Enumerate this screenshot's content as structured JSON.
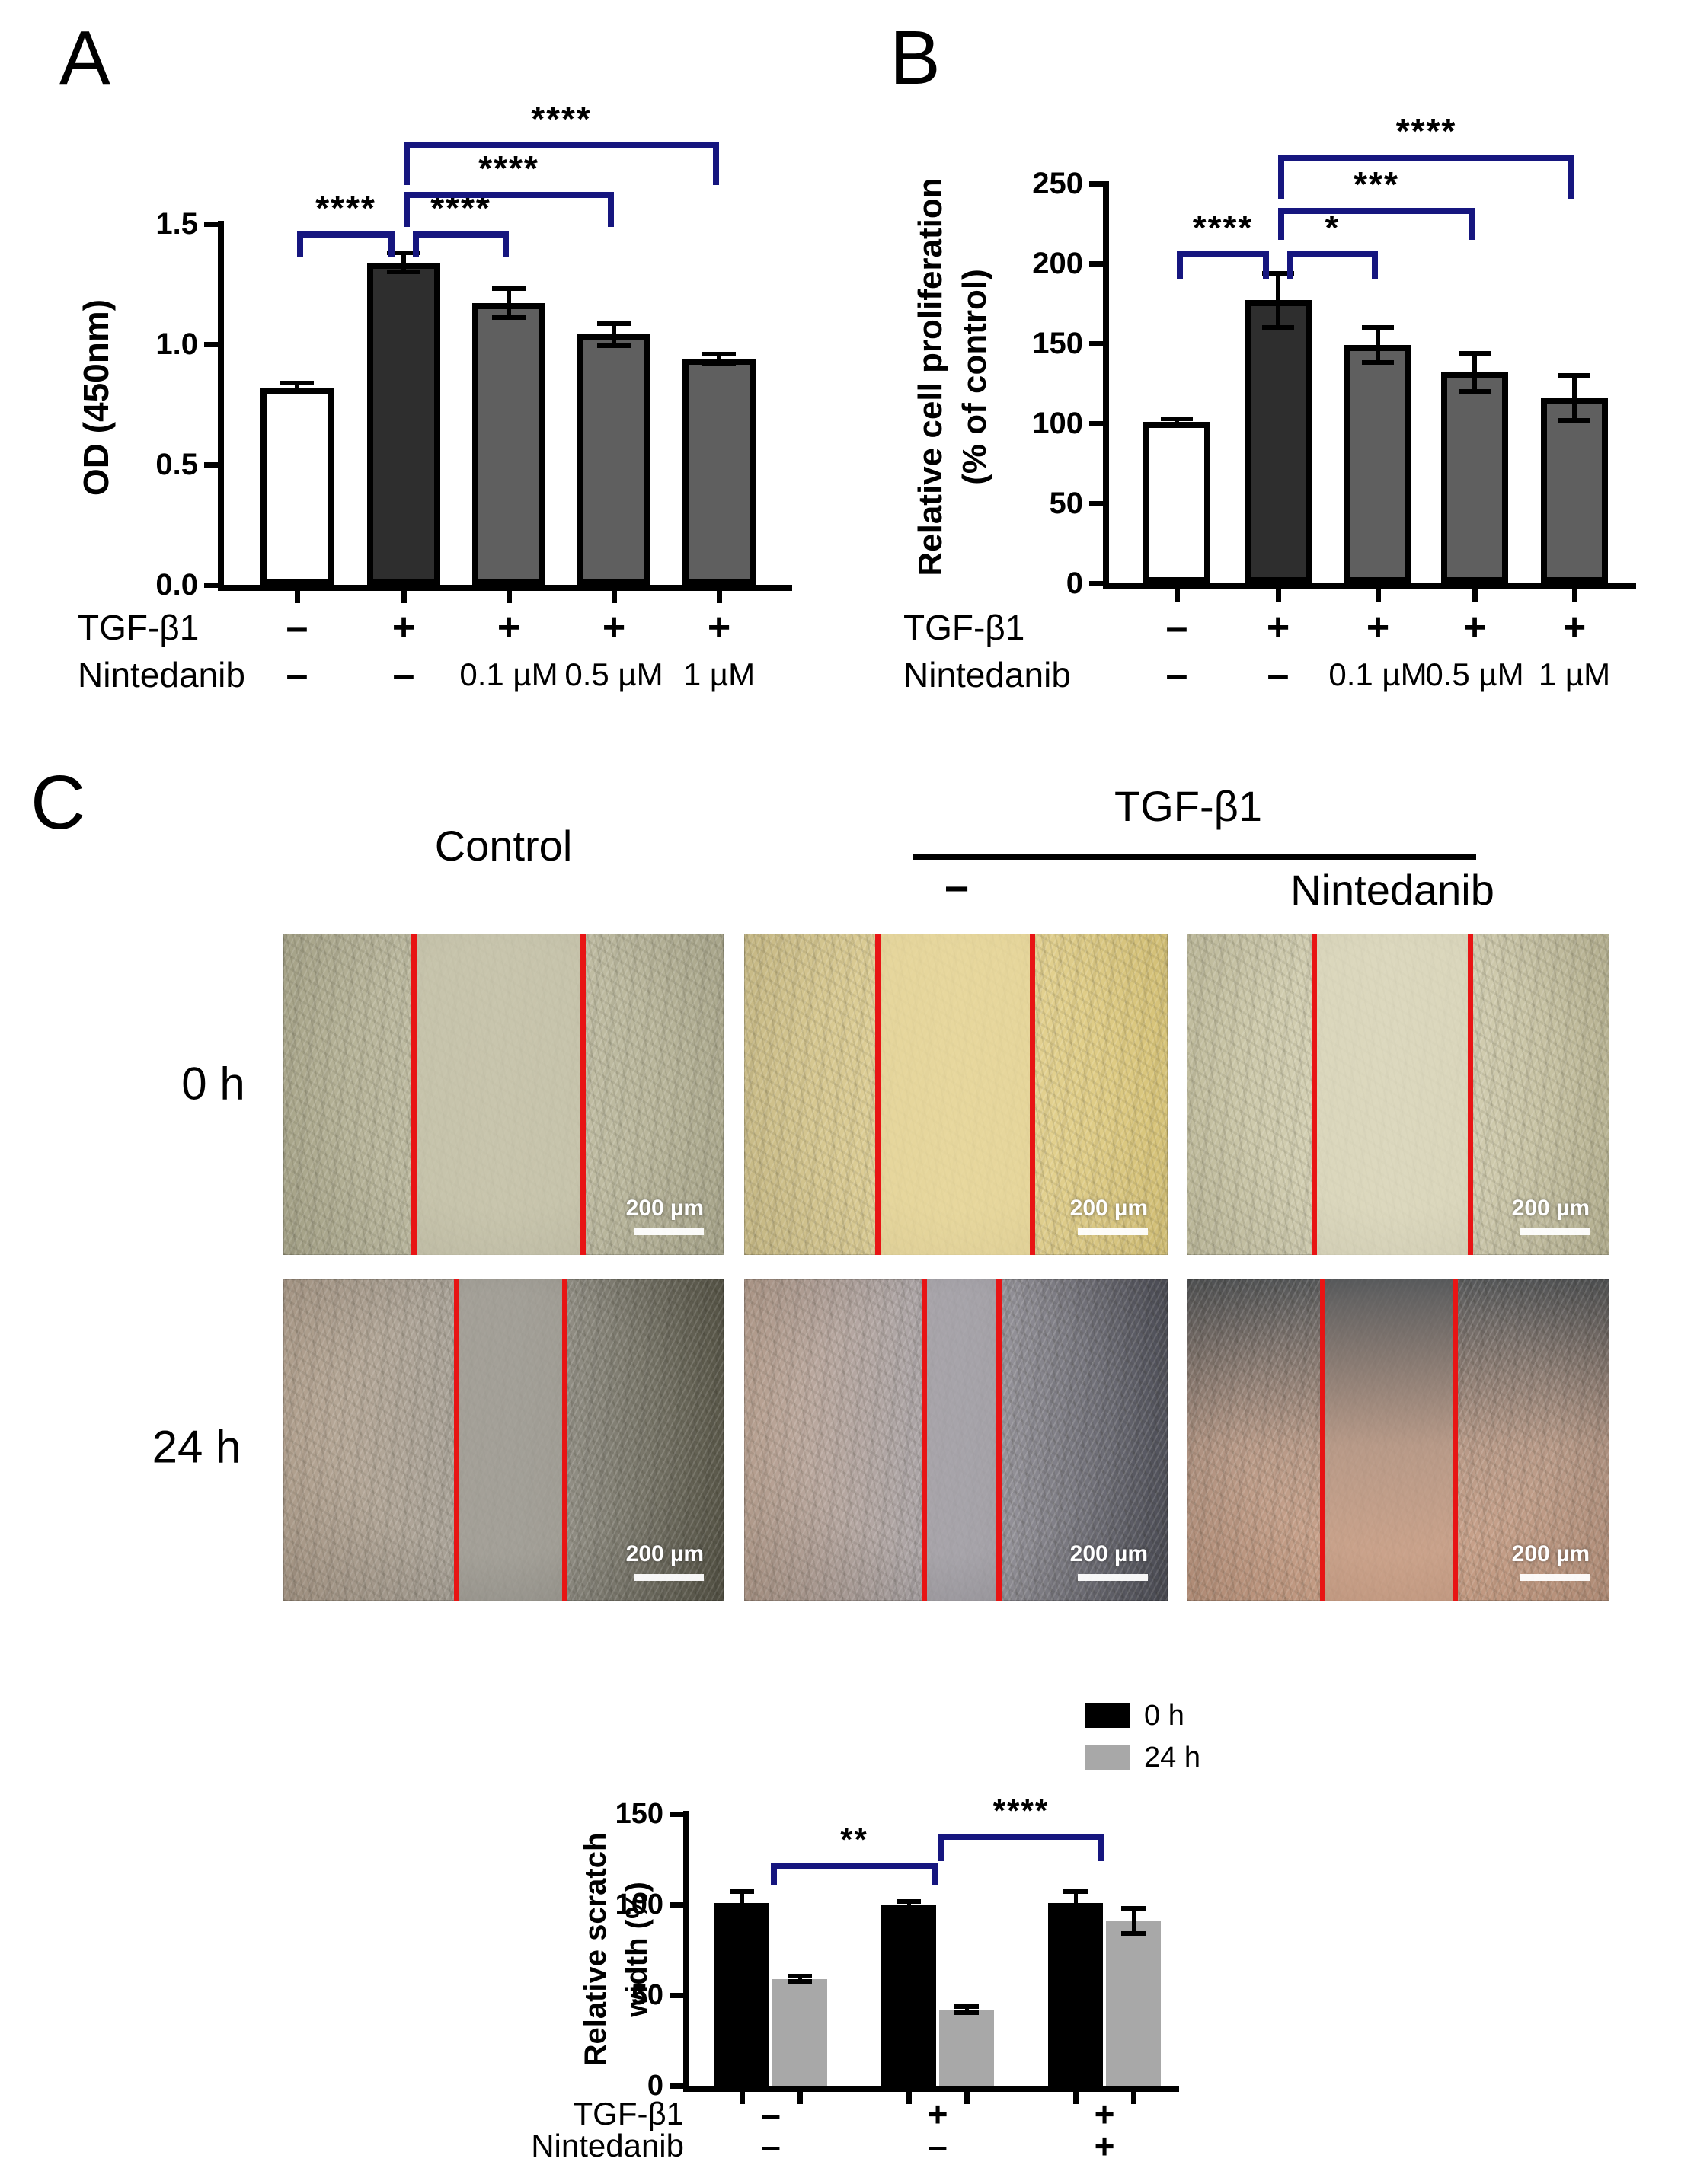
{
  "figure": {
    "panels": {
      "a": "A",
      "b": "B",
      "c": "C"
    }
  },
  "style": {
    "bracket_color": "#16167f",
    "scratch_line_color": "#e81414",
    "bar_dark": "#2e2e2e",
    "bar_gray": "#5f5f5f",
    "bar_black": "#000000",
    "bar_light_gray": "#a8a8a8"
  },
  "chart_data": [
    {
      "id": "A",
      "type": "bar",
      "title": "",
      "ylabel": "OD (450nm)",
      "ylabel_lines": [
        "OD (450nm)"
      ],
      "ylim": [
        0,
        1.5
      ],
      "yticks": [
        "0.0",
        "0.5",
        "1.0",
        "1.5"
      ],
      "ytick_values": [
        0,
        0.5,
        1.0,
        1.5
      ],
      "values": [
        0.82,
        1.34,
        1.17,
        1.04,
        0.94
      ],
      "errors": [
        0.02,
        0.04,
        0.06,
        0.045,
        0.02
      ],
      "bar_colors": [
        "#ffffff",
        "#2e2e2e",
        "#5f5f5f",
        "#5f5f5f",
        "#5f5f5f"
      ],
      "condition_rows": [
        {
          "label": "TGF-β1",
          "values": [
            "-",
            "+",
            "+",
            "+",
            "+"
          ]
        },
        {
          "label": "Nintedanib",
          "values": [
            "-",
            "-",
            "0.1 µM",
            "0.5 µM",
            "1 µM"
          ]
        }
      ],
      "brackets": [
        {
          "from": 0,
          "to": 1,
          "label": "****",
          "tier": 1
        },
        {
          "from": 1,
          "to": 2,
          "label": "****",
          "tier": 1
        },
        {
          "from": 1,
          "to": 3,
          "label": "****",
          "tier": 2
        },
        {
          "from": 1,
          "to": 4,
          "label": "****",
          "tier": 3
        }
      ]
    },
    {
      "id": "B",
      "type": "bar",
      "title": "",
      "ylabel": "Relative cell proliferation (% of control)",
      "ylabel_lines": [
        "Relative cell proliferation",
        "(% of control)"
      ],
      "ylim": [
        0,
        250
      ],
      "yticks": [
        "0",
        "50",
        "100",
        "150",
        "200",
        "250"
      ],
      "ytick_values": [
        0,
        50,
        100,
        150,
        200,
        250
      ],
      "values": [
        101,
        177,
        149,
        132,
        116
      ],
      "errors": [
        2,
        17,
        11,
        12,
        14
      ],
      "bar_colors": [
        "#ffffff",
        "#2e2e2e",
        "#5f5f5f",
        "#5f5f5f",
        "#5f5f5f"
      ],
      "condition_rows": [
        {
          "label": "TGF-β1",
          "values": [
            "-",
            "+",
            "+",
            "+",
            "+"
          ]
        },
        {
          "label": "Nintedanib",
          "values": [
            "-",
            "-",
            "0.1 µM",
            "0.5 µM",
            "1 µM"
          ]
        }
      ],
      "brackets": [
        {
          "from": 0,
          "to": 1,
          "label": "****",
          "tier": 1
        },
        {
          "from": 1,
          "to": 2,
          "label": "*",
          "tier": 1
        },
        {
          "from": 1,
          "to": 3,
          "label": "***",
          "tier": 2
        },
        {
          "from": 1,
          "to": 4,
          "label": "****",
          "tier": 3
        }
      ]
    },
    {
      "id": "scratch",
      "type": "grouped-bar",
      "title": "",
      "ylabel": "Relative scratch width (%)",
      "ylabel_lines": [
        "Relative scratch",
        "width (%)"
      ],
      "ylim": [
        0,
        150
      ],
      "yticks": [
        "0",
        "50",
        "100",
        "150"
      ],
      "ytick_values": [
        0,
        50,
        100,
        150
      ],
      "legend": [
        {
          "label": "0 h",
          "color": "#000000"
        },
        {
          "label": "24 h",
          "color": "#a8a8a8"
        }
      ],
      "series": [
        {
          "name": "0 h",
          "color": "#000000",
          "values": [
            101,
            100,
            101
          ],
          "errors": [
            6,
            1.5,
            6
          ]
        },
        {
          "name": "24 h",
          "color": "#a8a8a8",
          "values": [
            59,
            42,
            91
          ],
          "errors": [
            1.5,
            1.5,
            7
          ]
        }
      ],
      "condition_rows": [
        {
          "label": "TGF-β1",
          "values": [
            "-",
            "+",
            "+"
          ]
        },
        {
          "label": "Nintedanib",
          "values": [
            "-",
            "-",
            "+"
          ]
        }
      ],
      "brackets": [
        {
          "from": 0,
          "to": 1,
          "label": "**",
          "tier": 1
        },
        {
          "from": 1,
          "to": 2,
          "label": "****",
          "tier": 2
        }
      ]
    }
  ],
  "panel_c": {
    "headers": {
      "control": "Control",
      "tgf": "TGF-β1",
      "minus": "−",
      "nintedanib": "Nintedanib"
    },
    "row_labels": [
      "0 h",
      "24 h"
    ],
    "scale_bar_label": "200 µm",
    "micrographs": [
      {
        "time": "0 h",
        "condition": "Control",
        "palette": {
          "left": "#aeab8f",
          "mid": "#c8c5ad",
          "right": "#b2af93"
        },
        "lines": [
          0.295,
          0.68
        ],
        "vertical": false,
        "vignette": 0.14
      },
      {
        "time": "0 h",
        "condition": "TGF-β1",
        "palette": {
          "left": "#cdbf8a",
          "mid": "#e7d79d",
          "right": "#dbc77b"
        },
        "lines": [
          0.315,
          0.68
        ],
        "vertical": false,
        "vignette": 0.1
      },
      {
        "time": "0 h",
        "condition": "TGF-β1 + Nintedanib",
        "palette": {
          "left": "#c6c2a2",
          "mid": "#dcd8be",
          "right": "#beb998"
        },
        "lines": [
          0.3,
          0.67
        ],
        "vertical": false,
        "vignette": 0.14
      },
      {
        "time": "24 h",
        "condition": "Control",
        "palette": {
          "left": "#bcaa97",
          "mid": "#a3a098",
          "right": "#5f5d4e"
        },
        "lines": [
          0.392,
          0.639
        ],
        "vertical": false,
        "vignette": 0.3
      },
      {
        "time": "24 h",
        "condition": "TGF-β1",
        "palette": {
          "left": "#c2a998",
          "mid": "#a7a4aa",
          "right": "#54555f"
        },
        "lines": [
          0.425,
          0.6
        ],
        "vertical": false,
        "vignette": 0.3
      },
      {
        "time": "24 h",
        "condition": "TGF-β1 + Nintedanib",
        "palette": {
          "left": "#5a5c5e",
          "mid": "#b89a88",
          "right": "#d2a68c"
        },
        "lines": [
          0.32,
          0.635
        ],
        "vertical": true,
        "vignette": 0.32
      }
    ]
  }
}
